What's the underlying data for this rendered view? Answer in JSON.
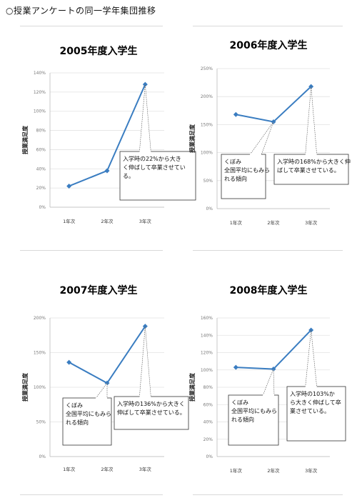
{
  "page": {
    "title": "○授業アンケートの同一学年集団推移"
  },
  "chart_data": [
    {
      "type": "line",
      "title": "2005年度入学生",
      "ylabel": "授業満足度",
      "categories": [
        "1年次",
        "2年次",
        "3年次"
      ],
      "yticks": [
        "0%",
        "20%",
        "40%",
        "60%",
        "80%",
        "100%",
        "120%",
        "140%"
      ],
      "ylim": [
        0,
        140
      ],
      "series": [
        {
          "values": [
            22,
            38,
            128
          ]
        }
      ],
      "color": "#3a7dc1",
      "annotations": [
        {
          "lines": [
            "入学時の22%から大き",
            "く伸ばして卒業させてい",
            "る。"
          ],
          "point": 2
        }
      ]
    },
    {
      "type": "line",
      "title": "2006年度入学生",
      "ylabel": "授業満足度",
      "categories": [
        "1年次",
        "2年次",
        "3年次"
      ],
      "yticks": [
        "0%",
        "50%",
        "100%",
        "150%",
        "200%",
        "250%"
      ],
      "ylim": [
        0,
        250
      ],
      "series": [
        {
          "values": [
            168,
            155,
            218
          ]
        }
      ],
      "color": "#3a7dc1",
      "annotations": [
        {
          "lines": [
            "くぼみ",
            "全国平均にもみら",
            "れる傾向"
          ],
          "point": 1
        },
        {
          "lines": [
            "入学時の168%から大きく伸",
            "ばして卒業させている。"
          ],
          "point": 2
        }
      ]
    },
    {
      "type": "line",
      "title": "2007年度入学生",
      "ylabel": "授業満足度",
      "categories": [
        "1年次",
        "2年次",
        "3年次"
      ],
      "yticks": [
        "0%",
        "50%",
        "100%",
        "150%",
        "200%"
      ],
      "ylim": [
        0,
        200
      ],
      "series": [
        {
          "values": [
            136,
            106,
            188
          ]
        }
      ],
      "color": "#3a7dc1",
      "annotations": [
        {
          "lines": [
            "くぼみ",
            "全国平均にもみら",
            "れる傾向"
          ],
          "point": 1
        },
        {
          "lines": [
            "入学時の136%から大きく",
            "伸ばして卒業させている。"
          ],
          "point": 2
        }
      ]
    },
    {
      "type": "line",
      "title": "2008年度入学生",
      "ylabel": "授業満足度",
      "categories": [
        "1年次",
        "2年次",
        "3年次"
      ],
      "yticks": [
        "0%",
        "20%",
        "40%",
        "60%",
        "80%",
        "100%",
        "120%",
        "140%",
        "160%"
      ],
      "ylim": [
        0,
        160
      ],
      "series": [
        {
          "values": [
            103,
            101,
            146
          ]
        }
      ],
      "color": "#3a7dc1",
      "annotations": [
        {
          "lines": [
            "くぼみ",
            "全国平均にもみら",
            "れる傾向"
          ],
          "point": 1
        },
        {
          "lines": [
            "入学時の103%か",
            "ら大きく伸ばして卒",
            "業させている。"
          ],
          "point": 2
        }
      ]
    }
  ]
}
